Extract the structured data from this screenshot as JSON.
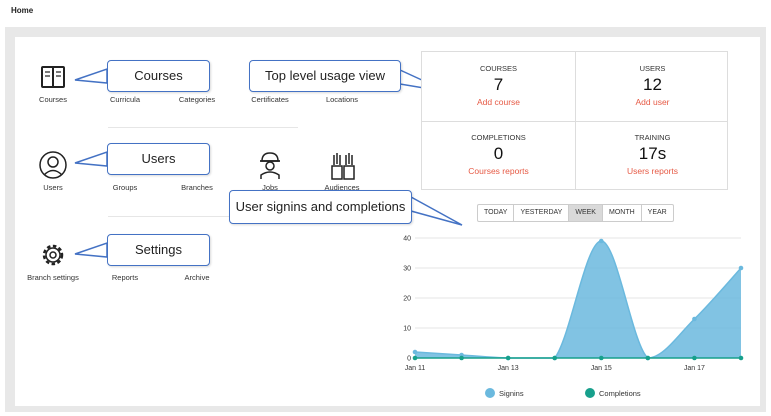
{
  "header": {
    "title": "Home"
  },
  "tiles": {
    "courses": "Courses",
    "curricula": "Curricula",
    "categories": "Categories",
    "certificates": "Certificates",
    "locations": "Locations",
    "users": "Users",
    "groups": "Groups",
    "branches": "Branches",
    "jobs": "Jobs",
    "audiences": "Audiences",
    "branch_settings": "Branch settings",
    "reports": "Reports",
    "archive": "Archive"
  },
  "callouts": {
    "courses": "Courses",
    "top_level": "Top level usage view",
    "users": "Users",
    "signins": "User signins and completions",
    "settings": "Settings"
  },
  "stats": {
    "courses": {
      "caption": "COURSES",
      "value": "7",
      "action": "Add course"
    },
    "users": {
      "caption": "USERS",
      "value": "12",
      "action": "Add user"
    },
    "completions": {
      "caption": "COMPLETIONS",
      "value": "0",
      "action": "Courses reports"
    },
    "training": {
      "caption": "TRAINING",
      "value": "17s",
      "action": "Users reports"
    }
  },
  "range": {
    "today": "TODAY",
    "yesterday": "YESTERDAY",
    "week": "WEEK",
    "month": "MONTH",
    "year": "YEAR",
    "selected": "WEEK"
  },
  "colors": {
    "accent_link": "#e65a45",
    "callout_border": "#4472c4",
    "signins": "#6bb9de",
    "completions": "#17a08c"
  },
  "chart_data": {
    "type": "area",
    "x": [
      "Jan 11",
      "Jan 12",
      "Jan 13",
      "Jan 14",
      "Jan 15",
      "Jan 16",
      "Jan 17",
      "Jan 18"
    ],
    "x_tick_labels": [
      "Jan 11",
      "Jan 13",
      "Jan 15",
      "Jan 17"
    ],
    "series": [
      {
        "name": "Signins",
        "values": [
          2,
          1,
          0,
          0,
          39,
          0,
          13,
          30
        ]
      },
      {
        "name": "Completions",
        "values": [
          0,
          0,
          0,
          0,
          0,
          0,
          0,
          0
        ]
      }
    ],
    "ylim": [
      0,
      40
    ],
    "yticks": [
      0,
      10,
      20,
      30,
      40
    ],
    "grid": true,
    "legend": "bottom"
  }
}
